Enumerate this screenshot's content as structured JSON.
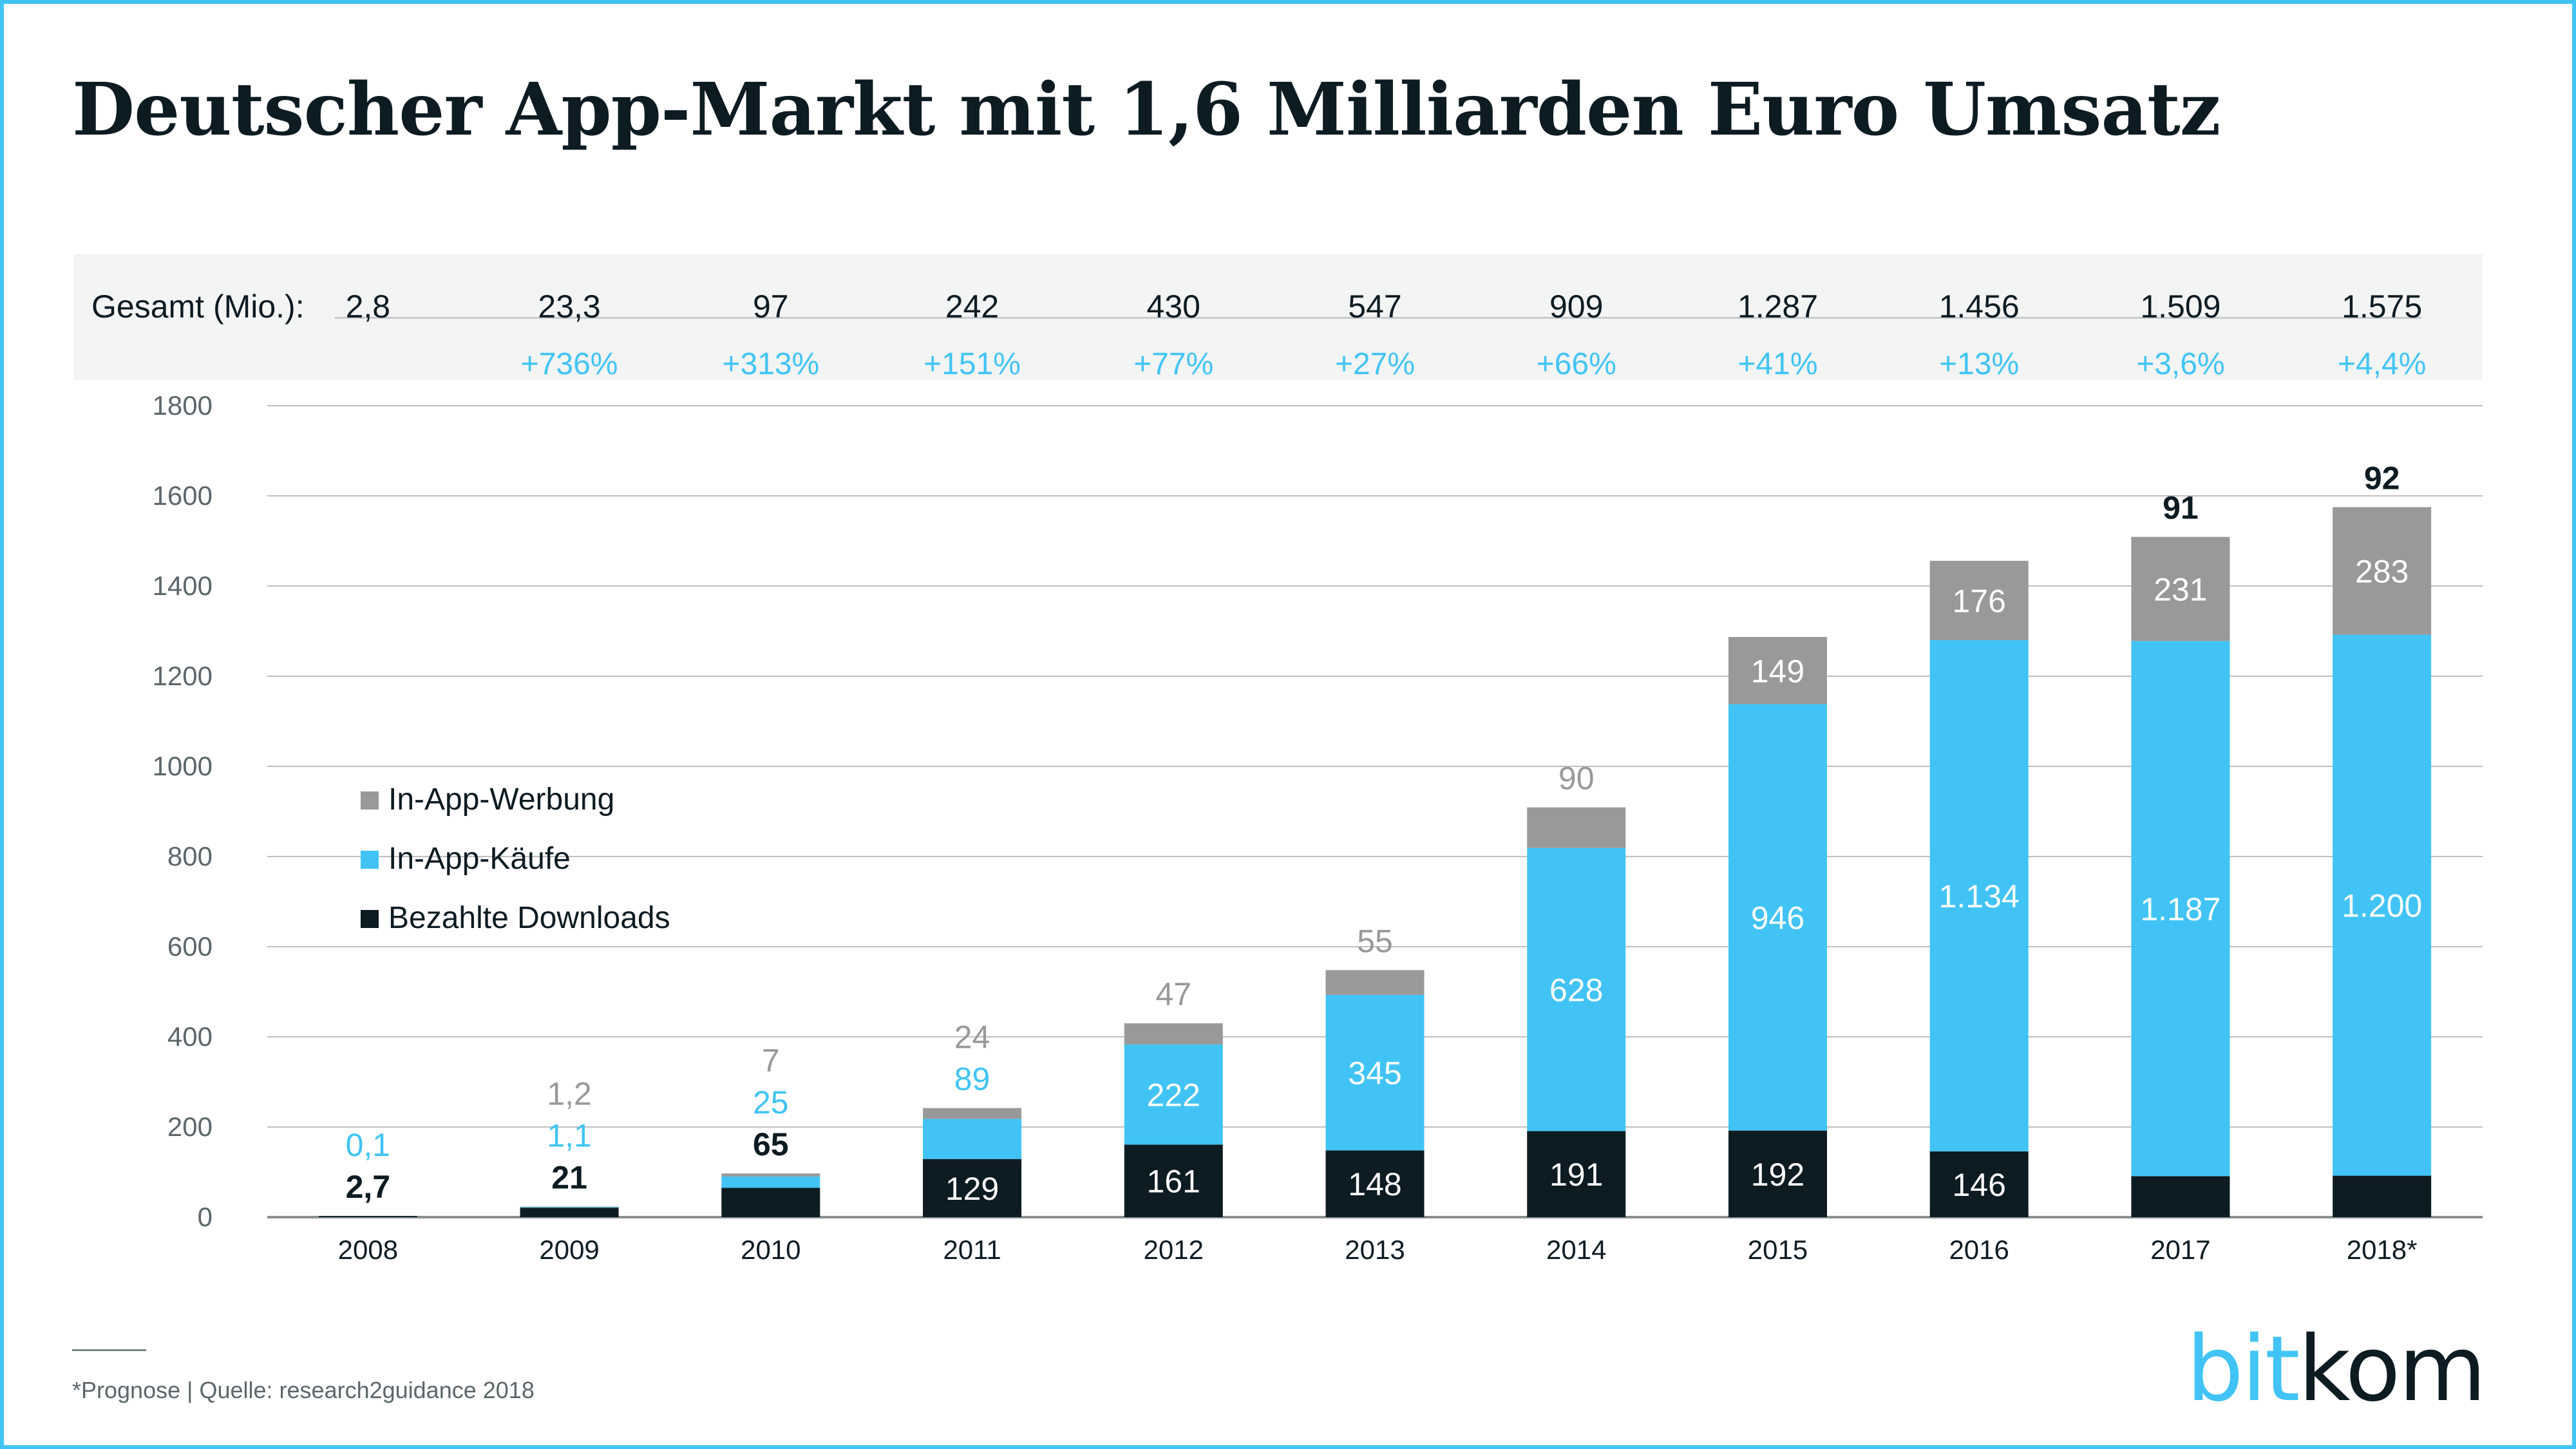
{
  "title": "Deutscher App-Markt mit 1,6 Milliarden Euro Umsatz",
  "summary": {
    "label": "Gesamt (Mio.):",
    "totals": [
      "2,8",
      "23,3",
      "97",
      "242",
      "430",
      "547",
      "909",
      "1.287",
      "1.456",
      "1.509",
      "1.575"
    ],
    "growth": [
      "",
      "+736%",
      "+313%",
      "+151%",
      "+77%",
      "+27%",
      "+66%",
      "+41%",
      "+13%",
      "+3,6%",
      "+4,4%"
    ]
  },
  "source_note": "*Prognose | Quelle: research2guidance 2018",
  "logo": {
    "part1": "bit",
    "part2": "kom"
  },
  "colors": {
    "downloads": "#0d1b22",
    "iap": "#41c4f5",
    "ads": "#999999",
    "frame": "#41c4f5",
    "grid": "#bfbfbf"
  },
  "chart_data": {
    "type": "bar",
    "stacked": true,
    "categories": [
      "2008",
      "2009",
      "2010",
      "2011",
      "2012",
      "2013",
      "2014",
      "2015",
      "2016",
      "2017",
      "2018*"
    ],
    "series": [
      {
        "name": "Bezahlte Downloads",
        "values": [
          2.7,
          21,
          65,
          129,
          161,
          148,
          191,
          192,
          146,
          91,
          92
        ],
        "labels": [
          "2,7",
          "21",
          "65",
          "129",
          "161",
          "148",
          "191",
          "192",
          "146",
          "91",
          "92"
        ]
      },
      {
        "name": "In-App-Käufe",
        "values": [
          0.1,
          1.1,
          25,
          89,
          222,
          345,
          628,
          946,
          1134,
          1187,
          1200
        ],
        "labels": [
          "0,1",
          "1,1",
          "25",
          "89",
          "222",
          "345",
          "628",
          "946",
          "1.134",
          "1.187",
          "1.200"
        ]
      },
      {
        "name": "In-App-Werbung",
        "values": [
          0,
          1.2,
          7,
          24,
          47,
          55,
          90,
          149,
          176,
          231,
          283
        ],
        "labels": [
          "",
          "1,2",
          "7",
          "24",
          "47",
          "55",
          "90",
          "149",
          "176",
          "231",
          "283"
        ]
      }
    ],
    "legend_order": [
      "In-App-Werbung",
      "In-App-Käufe",
      "Bezahlte Downloads"
    ],
    "legend_position": "left-middle",
    "yticks": [
      0,
      200,
      400,
      600,
      800,
      1000,
      1200,
      1400,
      1600,
      1800
    ],
    "ylim": [
      0,
      1800
    ],
    "grid": true
  }
}
